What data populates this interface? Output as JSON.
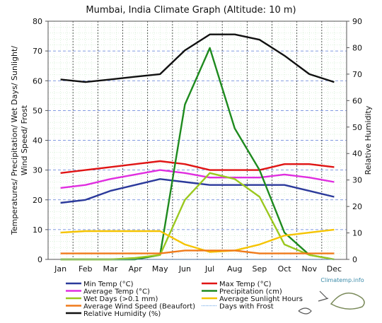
{
  "chart_data": {
    "type": "line",
    "title": "Mumbai, India Climate Graph (Altitude: 10 m)",
    "ylabel_left": [
      "Temperatures/ Precipitation/ Wet Days/ Sunlight/",
      "Wind Speed/ Frost"
    ],
    "ylabel_right": "Relative Humidity",
    "categories": [
      "Jan",
      "Feb",
      "Mar",
      "Apr",
      "May",
      "Jun",
      "Jul",
      "Aug",
      "Sep",
      "Oct",
      "Nov",
      "Dec"
    ],
    "ylim_left": [
      0,
      80
    ],
    "ylim_right": [
      0,
      90
    ],
    "yticks_left": [
      0,
      10,
      20,
      30,
      40,
      50,
      60,
      70,
      80
    ],
    "yticks_right": [
      0,
      10,
      20,
      30,
      40,
      50,
      60,
      70,
      80,
      90
    ],
    "grid": true,
    "legend_position": "bottom",
    "series": [
      {
        "name": "Min Temp (°C)",
        "color": "#2b3a9b",
        "axis": "left",
        "values": [
          19,
          20,
          23,
          25,
          27,
          26,
          25,
          25,
          25,
          25,
          23,
          21
        ]
      },
      {
        "name": "Max Temp (°C)",
        "color": "#e01414",
        "axis": "left",
        "values": [
          29,
          30,
          31,
          32,
          33,
          32,
          30,
          30,
          30,
          32,
          32,
          31
        ]
      },
      {
        "name": "Average Temp (°C)",
        "color": "#e02ee0",
        "axis": "left",
        "values": [
          24,
          25,
          27,
          28.5,
          30,
          29,
          27.5,
          27.5,
          27.5,
          28.5,
          27.5,
          26
        ]
      },
      {
        "name": "Precipitation (cm)",
        "color": "#1e8a1e",
        "axis": "left",
        "values": [
          0,
          0,
          0,
          0,
          1.5,
          52,
          71,
          44,
          30,
          9,
          1.5,
          0
        ]
      },
      {
        "name": "Wet Days (>0.1 mm)",
        "color": "#9ac81e",
        "axis": "left",
        "values": [
          0,
          0,
          0,
          0.5,
          1.5,
          20,
          29,
          27,
          21,
          5,
          1.5,
          0
        ]
      },
      {
        "name": "Average Sunlight Hours",
        "color": "#f5c400",
        "axis": "left",
        "values": [
          9,
          9.5,
          9.5,
          9.5,
          9.5,
          5,
          2.5,
          3,
          5,
          8,
          9,
          10
        ]
      },
      {
        "name": "Average Wind Speed (Beaufort)",
        "color": "#f07a1a",
        "axis": "left",
        "values": [
          2,
          2,
          2,
          2,
          2,
          3,
          3,
          3,
          2,
          2,
          2,
          2
        ]
      },
      {
        "name": "Days with Frost",
        "color": "#7ab0e8",
        "axis": "left",
        "values": [
          0,
          0,
          0,
          0,
          0,
          0,
          0,
          0,
          0,
          0,
          0,
          0
        ]
      },
      {
        "name": "Relative Humidity (%)",
        "color": "#111111",
        "axis": "right",
        "values": [
          68,
          67,
          68,
          69,
          70,
          79,
          85,
          85,
          83,
          77,
          70,
          67
        ]
      }
    ]
  },
  "watermark": "Climatemp.info"
}
